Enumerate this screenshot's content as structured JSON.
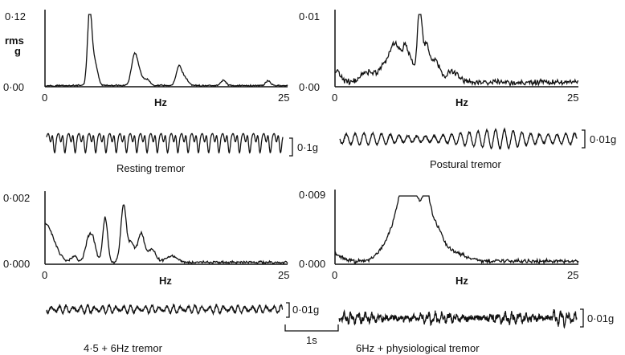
{
  "chart_data": [
    {
      "type": "line",
      "panel": "top-left",
      "ylabel_lines": [
        "rms",
        "g"
      ],
      "xlabel": "Hz",
      "x_ticks": [
        "0",
        "25"
      ],
      "y_ticks": [
        "0·12",
        "0·00"
      ],
      "xlim": [
        0,
        25
      ],
      "ylim": [
        0,
        0.12
      ],
      "peaks": [
        {
          "x": 4.6,
          "y": 0.12,
          "w": 0.22
        },
        {
          "x": 5.1,
          "y": 0.04,
          "w": 0.3
        },
        {
          "x": 9.2,
          "y": 0.048,
          "w": 0.3
        },
        {
          "x": 9.7,
          "y": 0.02,
          "w": 0.3
        },
        {
          "x": 10.5,
          "y": 0.01,
          "w": 0.3
        },
        {
          "x": 13.8,
          "y": 0.03,
          "w": 0.28
        },
        {
          "x": 14.4,
          "y": 0.012,
          "w": 0.35
        },
        {
          "x": 18.4,
          "y": 0.009,
          "w": 0.25
        },
        {
          "x": 23.0,
          "y": 0.008,
          "w": 0.25
        }
      ],
      "baseline": 0.002,
      "waveform": {
        "caption": "Resting tremor",
        "scale": "0·1g",
        "cycles": 23,
        "style": "spiky"
      }
    },
    {
      "type": "line",
      "panel": "top-right",
      "xlabel": "Hz",
      "x_ticks": [
        "0",
        "25"
      ],
      "y_ticks": [
        "0·01",
        "0·00"
      ],
      "xlim": [
        0,
        25
      ],
      "ylim": [
        0,
        0.01
      ],
      "peaks": [
        {
          "x": 0.2,
          "y": 0.0015,
          "w": 0.4
        },
        {
          "x": 3.5,
          "y": 0.0015,
          "w": 0.8
        },
        {
          "x": 5.2,
          "y": 0.0025,
          "w": 0.5
        },
        {
          "x": 6.0,
          "y": 0.0042,
          "w": 0.35
        },
        {
          "x": 6.6,
          "y": 0.0035,
          "w": 0.3
        },
        {
          "x": 7.2,
          "y": 0.0045,
          "w": 0.25
        },
        {
          "x": 7.8,
          "y": 0.0033,
          "w": 0.3
        },
        {
          "x": 8.7,
          "y": 0.01,
          "w": 0.25
        },
        {
          "x": 9.4,
          "y": 0.005,
          "w": 0.3
        },
        {
          "x": 10.3,
          "y": 0.003,
          "w": 0.4
        },
        {
          "x": 12.0,
          "y": 0.0015,
          "w": 0.7
        }
      ],
      "baseline": 0.0006,
      "waveform": {
        "caption": "Postural tremor",
        "scale": "0·01g",
        "cycles": 27,
        "style": "modulated"
      }
    },
    {
      "type": "line",
      "panel": "bottom-left",
      "xlabel": "Hz",
      "x_ticks": [
        "0",
        "25"
      ],
      "y_ticks": [
        "0·002",
        "0·000"
      ],
      "xlim": [
        0,
        25
      ],
      "ylim": [
        0,
        0.002
      ],
      "peaks": [
        {
          "x": 0.0,
          "y": 0.0012,
          "w": 0.9
        },
        {
          "x": 3.0,
          "y": 0.0002,
          "w": 0.3
        },
        {
          "x": 4.5,
          "y": 0.0007,
          "w": 0.35
        },
        {
          "x": 5.0,
          "y": 0.0005,
          "w": 0.3
        },
        {
          "x": 6.2,
          "y": 0.0014,
          "w": 0.25
        },
        {
          "x": 8.1,
          "y": 0.0018,
          "w": 0.28
        },
        {
          "x": 8.9,
          "y": 0.0006,
          "w": 0.3
        },
        {
          "x": 9.9,
          "y": 0.0009,
          "w": 0.35
        },
        {
          "x": 11.0,
          "y": 0.0004,
          "w": 0.4
        },
        {
          "x": 13.0,
          "y": 0.0002,
          "w": 0.6
        }
      ],
      "baseline": 6e-05,
      "waveform": {
        "caption": "4·5 + 6Hz tremor",
        "scale": "0·01g",
        "cycles": 33,
        "style": "small"
      }
    },
    {
      "type": "line",
      "panel": "bottom-right",
      "xlabel": "Hz",
      "x_ticks": [
        "0",
        "25"
      ],
      "y_ticks": [
        "0·009",
        "0·000"
      ],
      "xlim": [
        0,
        25
      ],
      "ylim": [
        0,
        0.009
      ],
      "peaks": [
        {
          "x": 0.1,
          "y": 0.0009,
          "w": 0.6
        },
        {
          "x": 6.2,
          "y": 0.003,
          "w": 1.2
        },
        {
          "x": 7.0,
          "y": 0.0045,
          "w": 0.6
        },
        {
          "x": 8.0,
          "y": 0.0062,
          "w": 0.5
        },
        {
          "x": 7.8,
          "y": 0.0028,
          "w": 1.5
        },
        {
          "x": 9.3,
          "y": 0.0062,
          "w": 0.45
        },
        {
          "x": 10.3,
          "y": 0.0035,
          "w": 0.7
        },
        {
          "x": 12.0,
          "y": 0.0012,
          "w": 1.3
        }
      ],
      "baseline": 0.0004,
      "waveform": {
        "caption": "6Hz + physiological tremor",
        "scale": "0·01g",
        "cycles": 34,
        "style": "noisy"
      }
    }
  ],
  "time_scale": {
    "label": "1s"
  }
}
